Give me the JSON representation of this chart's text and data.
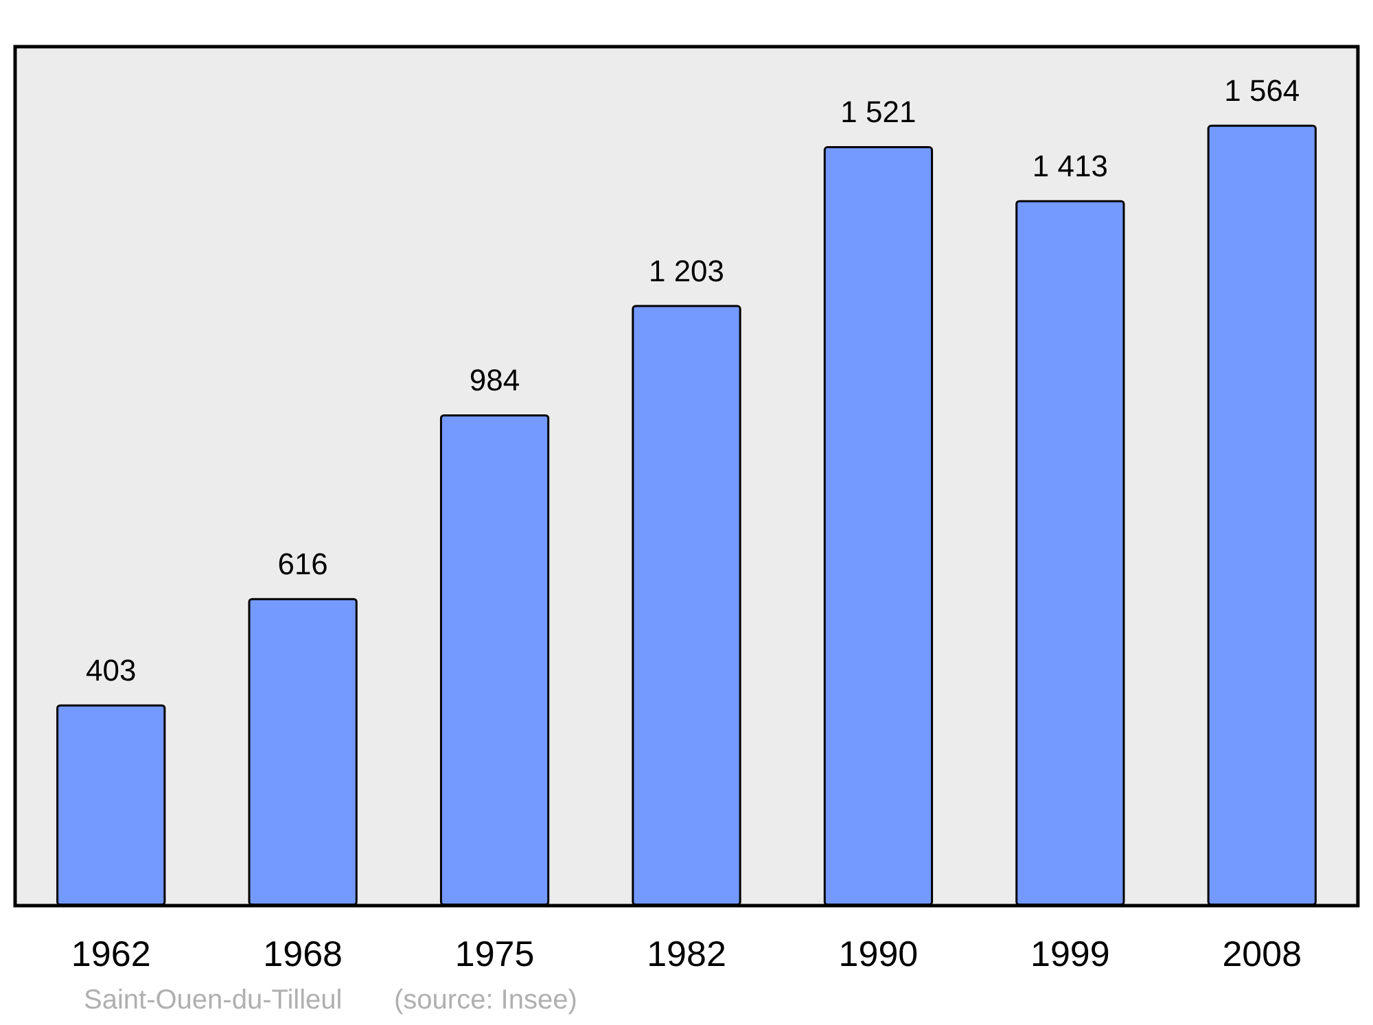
{
  "chart_data": {
    "type": "bar",
    "categories": [
      "1962",
      "1968",
      "1975",
      "1982",
      "1990",
      "1999",
      "2008"
    ],
    "values": [
      403,
      616,
      984,
      1203,
      1521,
      1413,
      1564
    ],
    "value_labels": [
      "403",
      "616",
      "984",
      "1 203",
      "1 521",
      "1 413",
      "1 564"
    ],
    "color": "#7499ff",
    "grid": false,
    "annotations": [
      "Saint-Ouen-du-Tilleul",
      "(source: Insee)"
    ]
  }
}
